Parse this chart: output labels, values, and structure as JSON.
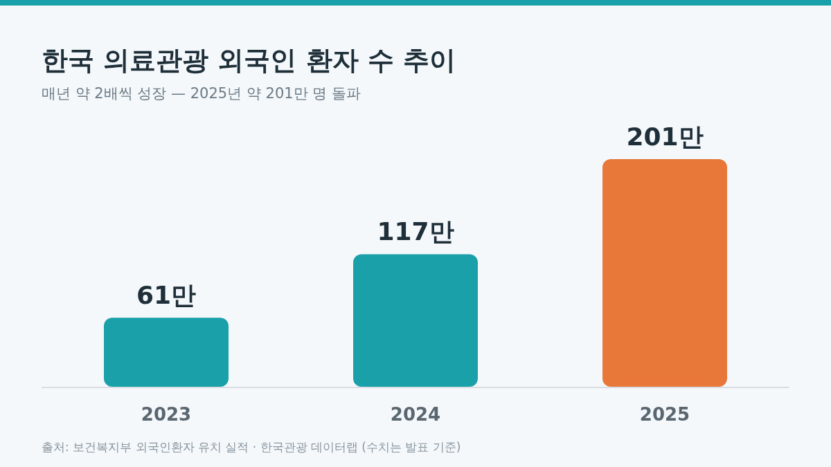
{
  "chart_data": {
    "type": "bar",
    "title": "한국 의료관광 외국인 환자 수 추이",
    "subtitle": "매년 약 2배씩 성장 — 2025년 약 201만 명 돌파",
    "categories": [
      "2023",
      "2024",
      "2025"
    ],
    "values": [
      61,
      117,
      201
    ],
    "colors": [
      "#1aa0a8",
      "#1aa0a8",
      "#e8773a"
    ],
    "value_labels": [
      "61만",
      "117만",
      "201만"
    ],
    "annotations": [
      "출처: 보건복지부 외국인환자 유치 실적 · 한국관광 데이터랩 (수치는 발표 기준)"
    ]
  }
}
